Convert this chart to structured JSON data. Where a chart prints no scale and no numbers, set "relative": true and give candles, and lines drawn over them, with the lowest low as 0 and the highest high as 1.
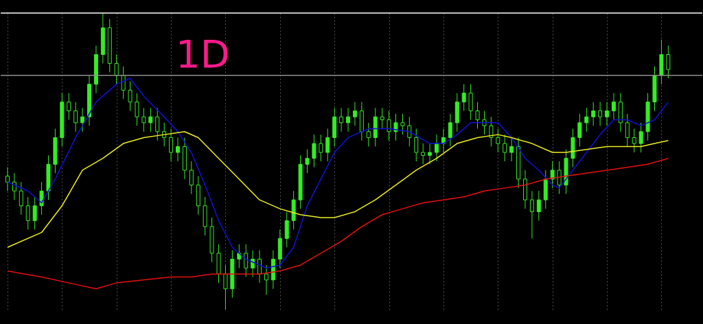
{
  "chart_data": {
    "type": "candlestick",
    "relative": true,
    "color": "#33ee22",
    "grid": "x",
    "annotations": [
      "1D"
    ],
    "categories": [
      null,
      null,
      null,
      null,
      null,
      null,
      null,
      null,
      null,
      null,
      null,
      null,
      null,
      null,
      null,
      null,
      null,
      null,
      null,
      null,
      null,
      null,
      null,
      null,
      null,
      null,
      null,
      null,
      null,
      null,
      null,
      null,
      null,
      null,
      null,
      null,
      null,
      null,
      null,
      null,
      null,
      null,
      null,
      null,
      null,
      null,
      null,
      null,
      null,
      null,
      null,
      null,
      null,
      null,
      null,
      null,
      null,
      null,
      null,
      null,
      null,
      null,
      null,
      null,
      null,
      null,
      null,
      null,
      null,
      null,
      null,
      null,
      null,
      null,
      null,
      null,
      null,
      null,
      null,
      null,
      null,
      null,
      null,
      null,
      null,
      null,
      null,
      null,
      null,
      null,
      null,
      null,
      null,
      null,
      null,
      null,
      null,
      null
    ],
    "ohlc": [
      [
        0.45,
        0.48,
        0.4,
        0.43
      ],
      [
        0.43,
        0.46,
        0.37,
        0.4
      ],
      [
        0.4,
        0.43,
        0.32,
        0.35
      ],
      [
        0.35,
        0.38,
        0.27,
        0.3
      ],
      [
        0.3,
        0.38,
        0.27,
        0.35
      ],
      [
        0.35,
        0.43,
        0.32,
        0.4
      ],
      [
        0.4,
        0.52,
        0.37,
        0.49
      ],
      [
        0.49,
        0.61,
        0.46,
        0.58
      ],
      [
        0.58,
        0.73,
        0.55,
        0.7
      ],
      [
        0.7,
        0.73,
        0.64,
        0.67
      ],
      [
        0.67,
        0.7,
        0.6,
        0.63
      ],
      [
        0.63,
        0.68,
        0.6,
        0.65
      ],
      [
        0.65,
        0.79,
        0.62,
        0.76
      ],
      [
        0.76,
        0.89,
        0.73,
        0.86
      ],
      [
        0.86,
        1.0,
        0.83,
        0.95
      ],
      [
        0.95,
        0.98,
        0.8,
        0.83
      ],
      [
        0.83,
        0.86,
        0.76,
        0.79
      ],
      [
        0.79,
        0.82,
        0.71,
        0.74
      ],
      [
        0.74,
        0.77,
        0.67,
        0.7
      ],
      [
        0.7,
        0.73,
        0.62,
        0.65
      ],
      [
        0.65,
        0.68,
        0.6,
        0.63
      ],
      [
        0.63,
        0.68,
        0.6,
        0.65
      ],
      [
        0.65,
        0.68,
        0.57,
        0.6
      ],
      [
        0.6,
        0.63,
        0.55,
        0.58
      ],
      [
        0.58,
        0.61,
        0.5,
        0.53
      ],
      [
        0.53,
        0.58,
        0.5,
        0.55
      ],
      [
        0.55,
        0.58,
        0.44,
        0.47
      ],
      [
        0.47,
        0.5,
        0.39,
        0.42
      ],
      [
        0.42,
        0.45,
        0.32,
        0.35
      ],
      [
        0.35,
        0.38,
        0.25,
        0.28
      ],
      [
        0.28,
        0.31,
        0.16,
        0.19
      ],
      [
        0.19,
        0.22,
        0.09,
        0.12
      ],
      [
        0.12,
        0.15,
        0.0,
        0.07
      ],
      [
        0.07,
        0.2,
        0.04,
        0.17
      ],
      [
        0.17,
        0.22,
        0.14,
        0.19
      ],
      [
        0.19,
        0.22,
        0.11,
        0.14
      ],
      [
        0.14,
        0.2,
        0.11,
        0.17
      ],
      [
        0.17,
        0.2,
        0.09,
        0.12
      ],
      [
        0.12,
        0.15,
        0.05,
        0.1
      ],
      [
        0.1,
        0.2,
        0.07,
        0.17
      ],
      [
        0.17,
        0.27,
        0.14,
        0.24
      ],
      [
        0.24,
        0.33,
        0.21,
        0.3
      ],
      [
        0.3,
        0.4,
        0.27,
        0.37
      ],
      [
        0.37,
        0.52,
        0.34,
        0.49
      ],
      [
        0.49,
        0.54,
        0.46,
        0.51
      ],
      [
        0.51,
        0.59,
        0.48,
        0.56
      ],
      [
        0.56,
        0.59,
        0.5,
        0.53
      ],
      [
        0.53,
        0.61,
        0.5,
        0.58
      ],
      [
        0.58,
        0.68,
        0.55,
        0.65
      ],
      [
        0.65,
        0.68,
        0.6,
        0.63
      ],
      [
        0.63,
        0.68,
        0.6,
        0.65
      ],
      [
        0.65,
        0.7,
        0.62,
        0.67
      ],
      [
        0.67,
        0.7,
        0.57,
        0.6
      ],
      [
        0.6,
        0.63,
        0.55,
        0.58
      ],
      [
        0.58,
        0.68,
        0.55,
        0.65
      ],
      [
        0.65,
        0.68,
        0.61,
        0.64
      ],
      [
        0.64,
        0.67,
        0.57,
        0.6
      ],
      [
        0.6,
        0.66,
        0.57,
        0.63
      ],
      [
        0.63,
        0.66,
        0.59,
        0.62
      ],
      [
        0.62,
        0.65,
        0.55,
        0.58
      ],
      [
        0.58,
        0.61,
        0.5,
        0.53
      ],
      [
        0.53,
        0.56,
        0.49,
        0.52
      ],
      [
        0.52,
        0.56,
        0.49,
        0.53
      ],
      [
        0.53,
        0.59,
        0.5,
        0.56
      ],
      [
        0.56,
        0.61,
        0.53,
        0.58
      ],
      [
        0.58,
        0.66,
        0.55,
        0.63
      ],
      [
        0.63,
        0.73,
        0.6,
        0.7
      ],
      [
        0.7,
        0.76,
        0.67,
        0.73
      ],
      [
        0.73,
        0.76,
        0.64,
        0.67
      ],
      [
        0.67,
        0.7,
        0.61,
        0.64
      ],
      [
        0.64,
        0.67,
        0.59,
        0.62
      ],
      [
        0.62,
        0.65,
        0.55,
        0.58
      ],
      [
        0.58,
        0.61,
        0.53,
        0.56
      ],
      [
        0.56,
        0.59,
        0.5,
        0.53
      ],
      [
        0.53,
        0.58,
        0.5,
        0.55
      ],
      [
        0.55,
        0.58,
        0.41,
        0.44
      ],
      [
        0.44,
        0.47,
        0.34,
        0.37
      ],
      [
        0.37,
        0.4,
        0.24,
        0.33
      ],
      [
        0.33,
        0.4,
        0.3,
        0.37
      ],
      [
        0.37,
        0.47,
        0.34,
        0.44
      ],
      [
        0.44,
        0.5,
        0.41,
        0.47
      ],
      [
        0.47,
        0.5,
        0.39,
        0.42
      ],
      [
        0.42,
        0.54,
        0.39,
        0.51
      ],
      [
        0.51,
        0.61,
        0.48,
        0.58
      ],
      [
        0.58,
        0.66,
        0.55,
        0.63
      ],
      [
        0.63,
        0.68,
        0.6,
        0.65
      ],
      [
        0.65,
        0.7,
        0.62,
        0.67
      ],
      [
        0.67,
        0.7,
        0.62,
        0.65
      ],
      [
        0.65,
        0.7,
        0.62,
        0.67
      ],
      [
        0.67,
        0.73,
        0.64,
        0.7
      ],
      [
        0.7,
        0.73,
        0.6,
        0.63
      ],
      [
        0.63,
        0.66,
        0.55,
        0.58
      ],
      [
        0.58,
        0.61,
        0.53,
        0.56
      ],
      [
        0.56,
        0.63,
        0.53,
        0.6
      ],
      [
        0.6,
        0.73,
        0.57,
        0.7
      ],
      [
        0.7,
        0.82,
        0.67,
        0.79
      ],
      [
        0.79,
        0.91,
        0.76,
        0.86
      ],
      [
        0.86,
        0.89,
        0.78,
        0.81
      ]
    ],
    "series": [
      {
        "type": "line",
        "color": "#1010e0",
        "values": [
          0.43,
          null,
          null,
          0.4,
          null,
          0.36,
          null,
          0.44,
          null,
          null,
          0.58,
          null,
          null,
          0.7,
          null,
          null,
          0.76,
          null,
          0.78,
          null,
          0.72,
          null,
          null,
          0.65,
          null,
          0.6,
          null,
          0.53,
          null,
          0.42,
          null,
          0.3,
          null,
          0.21,
          null,
          0.17,
          null,
          null,
          0.14,
          null,
          0.15,
          null,
          0.21,
          null,
          0.35,
          null,
          0.44,
          null,
          0.53,
          null,
          0.58,
          null,
          null,
          0.61,
          null,
          null,
          0.61,
          null,
          null,
          0.6,
          null,
          null,
          0.56,
          null,
          0.56,
          null,
          0.59,
          null,
          0.63,
          null,
          0.63,
          null,
          0.63,
          null,
          0.58,
          null,
          0.51,
          null,
          0.47,
          null,
          0.42,
          0.41,
          null,
          0.47,
          null,
          0.53,
          null,
          0.59,
          null,
          0.64,
          null,
          0.64,
          null,
          0.62,
          null,
          0.64,
          null,
          0.7
        ]
      },
      {
        "type": "line",
        "color": "#f0f020",
        "values": [
          0.21,
          null,
          null,
          null,
          null,
          0.26,
          null,
          null,
          0.35,
          null,
          null,
          0.47,
          null,
          null,
          0.51,
          null,
          null,
          0.56,
          null,
          null,
          0.58,
          null,
          null,
          0.59,
          null,
          null,
          0.6,
          null,
          0.58,
          null,
          null,
          0.51,
          null,
          null,
          0.44,
          null,
          null,
          0.37,
          null,
          null,
          0.34,
          null,
          null,
          0.32,
          null,
          null,
          0.31,
          null,
          0.31,
          null,
          null,
          0.33,
          null,
          null,
          0.37,
          null,
          null,
          0.42,
          null,
          null,
          0.47,
          null,
          null,
          0.51,
          null,
          null,
          0.56,
          null,
          null,
          0.58,
          null,
          null,
          0.59,
          null,
          0.58,
          null,
          null,
          0.56,
          null,
          null,
          0.53,
          null,
          0.53,
          null,
          null,
          0.54,
          null,
          null,
          0.55,
          null,
          null,
          0.55,
          null,
          0.55,
          null,
          0.56,
          null,
          0.57
        ]
      },
      {
        "type": "line",
        "color": "#e81010",
        "values": [
          0.13,
          null,
          null,
          null,
          null,
          0.11,
          null,
          null,
          null,
          0.09,
          null,
          null,
          null,
          0.07,
          null,
          null,
          0.09,
          null,
          null,
          null,
          0.1,
          null,
          null,
          null,
          0.11,
          null,
          null,
          0.11,
          null,
          null,
          0.12,
          null,
          null,
          null,
          0.12,
          null,
          null,
          0.12,
          null,
          null,
          0.13,
          null,
          null,
          0.15,
          null,
          null,
          0.19,
          null,
          null,
          0.23,
          null,
          null,
          0.28,
          null,
          null,
          0.32,
          null,
          null,
          0.34,
          null,
          null,
          0.36,
          null,
          null,
          0.37,
          null,
          null,
          0.38,
          null,
          null,
          0.4,
          null,
          null,
          0.41,
          null,
          null,
          0.42,
          null,
          null,
          0.44,
          null,
          null,
          0.45,
          null,
          null,
          0.46,
          null,
          null,
          0.47,
          null,
          null,
          0.48,
          null,
          null,
          0.49,
          null,
          null,
          0.51
        ]
      }
    ],
    "ref_lines": [
      {
        "axis": "y",
        "value": 1.0,
        "color": "#ffffff"
      },
      {
        "axis": "y",
        "value": 0.79,
        "color": "#909090"
      }
    ]
  }
}
